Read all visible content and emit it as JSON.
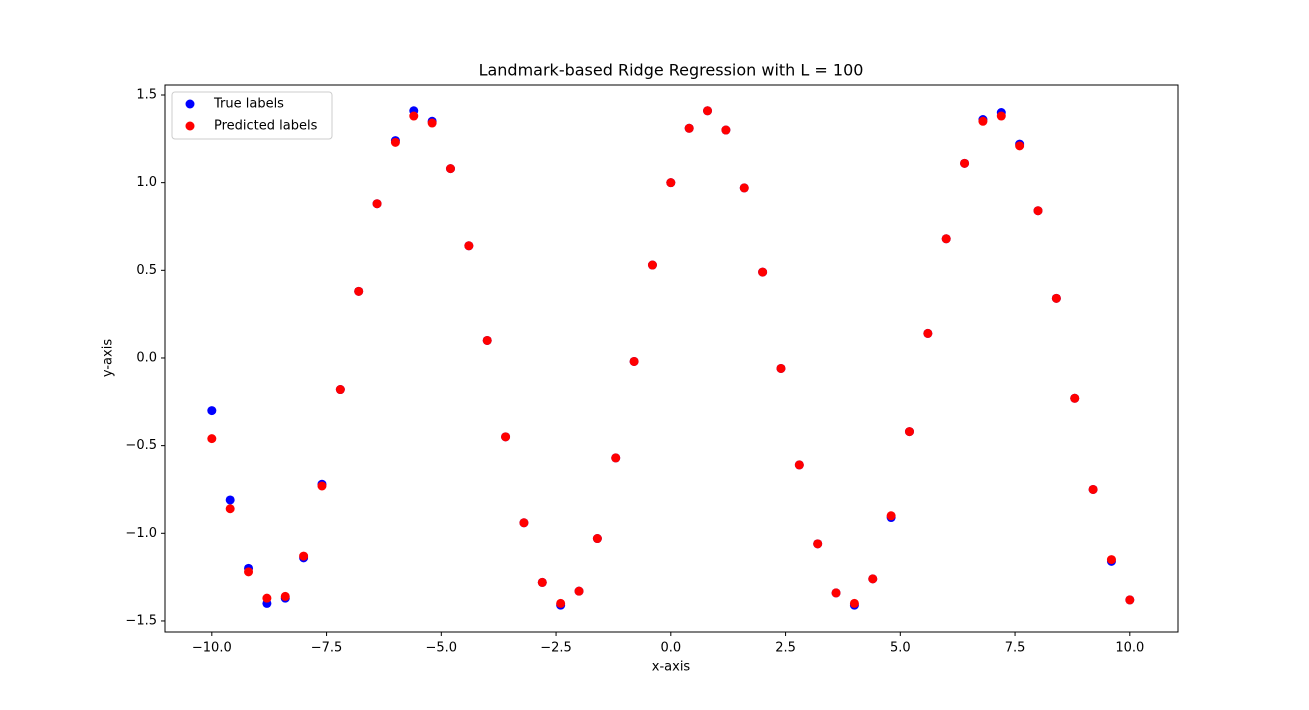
{
  "chart_data": {
    "type": "scatter",
    "title": "Landmark-based Ridge Regression with L = 100",
    "x_label": "x-axis",
    "y_label": "y-axis",
    "legend": "upper left",
    "xlim": [
      -11.02,
      11.05
    ],
    "ylim": [
      -1.563,
      1.557
    ],
    "xticks": [
      {
        "value": -10,
        "label": "−10.0"
      },
      {
        "value": -7.5,
        "label": "−7.5"
      },
      {
        "value": -5,
        "label": "−5.0"
      },
      {
        "value": -2.5,
        "label": "−2.5"
      },
      {
        "value": 0,
        "label": "0.0"
      },
      {
        "value": 2.5,
        "label": "2.5"
      },
      {
        "value": 5,
        "label": "5.0"
      },
      {
        "value": 7.5,
        "label": "7.5"
      },
      {
        "value": 10,
        "label": "10.0"
      }
    ],
    "yticks": [
      {
        "value": -1.5,
        "label": "−1.5"
      },
      {
        "value": -1,
        "label": "−1.0"
      },
      {
        "value": -0.5,
        "label": "−0.5"
      },
      {
        "value": 0,
        "label": "0.0"
      },
      {
        "value": 0.5,
        "label": "0.5"
      },
      {
        "value": 1,
        "label": "1.0"
      },
      {
        "value": 1.5,
        "label": "1.5"
      }
    ],
    "series": [
      {
        "name": "True labels",
        "color": "#0000ff",
        "x": [
          -10,
          -9.6,
          -9.2,
          -8.8,
          -8.4,
          -8,
          -7.6,
          -7.2,
          -6.8,
          -6.4,
          -6,
          -5.6,
          -5.2,
          -4.8,
          -4.4,
          -4,
          -3.6,
          -3.2,
          -2.8,
          -2.4,
          -2,
          -1.6,
          -1.2,
          -0.8,
          -0.4,
          0,
          0.4,
          0.8,
          1.2,
          1.6,
          2,
          2.4,
          2.8,
          3.2,
          3.6,
          4,
          4.4,
          4.8,
          5.2,
          5.6,
          6,
          6.4,
          6.8,
          7.2,
          7.6,
          8,
          8.4,
          8.8,
          9.2,
          9.6,
          10
        ],
        "y": [
          -0.3,
          -0.81,
          -1.2,
          -1.4,
          -1.37,
          -1.14,
          -0.72,
          -0.18,
          0.38,
          0.88,
          1.24,
          1.41,
          1.35,
          1.08,
          0.64,
          0.1,
          -0.45,
          -0.94,
          -1.28,
          -1.41,
          -1.33,
          -1.03,
          -0.57,
          -0.02,
          0.53,
          1,
          1.31,
          1.41,
          1.3,
          0.97,
          0.49,
          -0.06,
          -0.61,
          -1.06,
          -1.34,
          -1.41,
          -1.26,
          -0.91,
          -0.42,
          0.14,
          0.68,
          1.11,
          1.36,
          1.4,
          1.22,
          0.84,
          0.34,
          -0.23,
          -0.75,
          -1.16,
          -1.38
        ]
      },
      {
        "name": "Predicted labels",
        "color": "#ff0000",
        "x": [
          -10,
          -9.6,
          -9.2,
          -8.8,
          -8.4,
          -8,
          -7.6,
          -7.2,
          -6.8,
          -6.4,
          -6,
          -5.6,
          -5.2,
          -4.8,
          -4.4,
          -4,
          -3.6,
          -3.2,
          -2.8,
          -2.4,
          -2,
          -1.6,
          -1.2,
          -0.8,
          -0.4,
          0,
          0.4,
          0.8,
          1.2,
          1.6,
          2,
          2.4,
          2.8,
          3.2,
          3.6,
          4,
          4.4,
          4.8,
          5.2,
          5.6,
          6,
          6.4,
          6.8,
          7.2,
          7.6,
          8,
          8.4,
          8.8,
          9.2,
          9.6,
          10
        ],
        "y": [
          -0.46,
          -0.86,
          -1.22,
          -1.37,
          -1.36,
          -1.13,
          -0.73,
          -0.18,
          0.38,
          0.88,
          1.23,
          1.38,
          1.34,
          1.08,
          0.64,
          0.1,
          -0.45,
          -0.94,
          -1.28,
          -1.4,
          -1.33,
          -1.03,
          -0.57,
          -0.02,
          0.53,
          1,
          1.31,
          1.41,
          1.3,
          0.97,
          0.49,
          -0.06,
          -0.61,
          -1.06,
          -1.34,
          -1.4,
          -1.26,
          -0.9,
          -0.42,
          0.14,
          0.68,
          1.11,
          1.35,
          1.38,
          1.21,
          0.84,
          0.34,
          -0.23,
          -0.75,
          -1.15,
          -1.38
        ]
      }
    ]
  }
}
